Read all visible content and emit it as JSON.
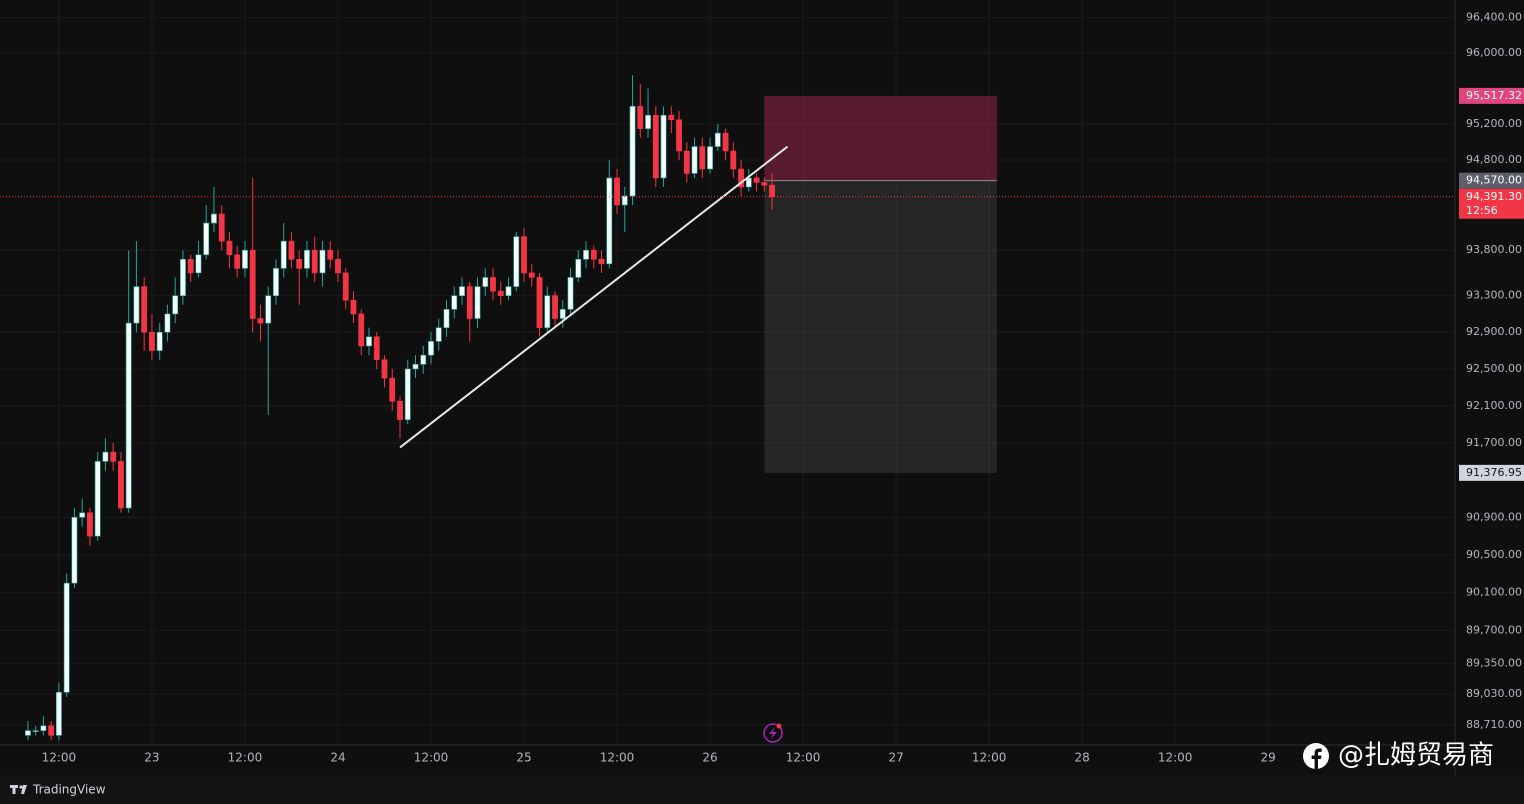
{
  "chart_data": {
    "type": "candlestick",
    "x": [
      8,
      9,
      10,
      11,
      12,
      13,
      14,
      15,
      16,
      17,
      18,
      19,
      20,
      21,
      22,
      23,
      24,
      25,
      26,
      27,
      28,
      29,
      30,
      31,
      32,
      33,
      34,
      35,
      36,
      37,
      38,
      39,
      40,
      41,
      42,
      43,
      44,
      45,
      46,
      47,
      48,
      49,
      50,
      51,
      52,
      53,
      54,
      55,
      56,
      57,
      58,
      59,
      60,
      61,
      62,
      63,
      64,
      65,
      66,
      67,
      68,
      69,
      70,
      71,
      72,
      73,
      74,
      75,
      76,
      77,
      78,
      79,
      80,
      81,
      82,
      83,
      84,
      85,
      86,
      87,
      88,
      89,
      90,
      91,
      92,
      93,
      94,
      95,
      96,
      97,
      98,
      99,
      100,
      101,
      102,
      103,
      104
    ],
    "open": [
      88600,
      88650,
      88650,
      88700,
      88600,
      89050,
      90200,
      90900,
      90950,
      90700,
      91500,
      91600,
      91500,
      91000,
      93000,
      93400,
      92900,
      92700,
      92900,
      93100,
      93300,
      93700,
      93550,
      93750,
      94100,
      94200,
      93900,
      93750,
      93600,
      93800,
      93050,
      93000,
      93300,
      93600,
      93900,
      93700,
      93600,
      93800,
      93550,
      93800,
      93700,
      93550,
      93250,
      93100,
      92750,
      92850,
      92600,
      92400,
      92150,
      91950,
      92500,
      92550,
      92650,
      92800,
      92950,
      93150,
      93300,
      93400,
      93050,
      93400,
      93500,
      93350,
      93300,
      93400,
      93950,
      93550,
      93500,
      92950,
      93300,
      93050,
      93150,
      93500,
      93700,
      93800,
      93700,
      93650,
      94600,
      94300,
      94400,
      95400,
      95150,
      95300,
      94600,
      95300,
      95250,
      94900,
      94650,
      94950,
      94700,
      94950,
      95100,
      94900,
      94700,
      94500,
      94600,
      94550,
      94520
    ],
    "high": [
      88750,
      88700,
      88800,
      88750,
      89150,
      90300,
      91000,
      91100,
      91000,
      91600,
      91750,
      91700,
      91600,
      93800,
      93900,
      93500,
      93100,
      93000,
      93200,
      93500,
      93800,
      93750,
      93900,
      94300,
      94500,
      94300,
      94000,
      93850,
      93900,
      94600,
      93200,
      93400,
      93700,
      94100,
      94000,
      93800,
      93900,
      93950,
      93900,
      93900,
      93800,
      93600,
      93350,
      93150,
      92950,
      92900,
      92650,
      92500,
      92200,
      92600,
      92650,
      92750,
      92900,
      93050,
      93250,
      93400,
      93500,
      93450,
      93500,
      93600,
      93600,
      93450,
      93500,
      94000,
      94050,
      93650,
      93550,
      93400,
      93350,
      93250,
      93600,
      93800,
      93900,
      93850,
      93800,
      94800,
      94700,
      94500,
      95750,
      95650,
      95600,
      95400,
      95400,
      95400,
      95350,
      95000,
      95050,
      95050,
      95050,
      95200,
      95150,
      95000,
      94800,
      94700,
      94650,
      94600,
      94650
    ],
    "low": [
      88550,
      88600,
      88600,
      88550,
      88550,
      89000,
      90150,
      90800,
      90600,
      90650,
      91400,
      91400,
      90950,
      90950,
      92900,
      92700,
      92600,
      92600,
      92800,
      93000,
      93200,
      93450,
      93500,
      93700,
      94000,
      93800,
      93600,
      93500,
      93500,
      92900,
      92800,
      92000,
      93200,
      93500,
      93600,
      93200,
      93500,
      93450,
      93400,
      93600,
      93450,
      93150,
      93000,
      92650,
      92650,
      92500,
      92300,
      92050,
      91750,
      91900,
      92400,
      92450,
      92550,
      92700,
      92850,
      93050,
      93200,
      92800,
      92950,
      93300,
      93250,
      93200,
      93250,
      93350,
      93450,
      93400,
      92850,
      92900,
      92950,
      92950,
      93100,
      93450,
      93600,
      93600,
      93550,
      93600,
      94200,
      94000,
      94300,
      95050,
      95050,
      94500,
      94500,
      95100,
      94800,
      94550,
      94600,
      94600,
      94650,
      94900,
      94800,
      94600,
      94400,
      94450,
      94450,
      94450,
      94250
    ],
    "close": [
      88650,
      88650,
      88700,
      88600,
      89050,
      90200,
      90900,
      90950,
      90700,
      91500,
      91600,
      91500,
      91000,
      93000,
      93400,
      92900,
      92700,
      92900,
      93100,
      93300,
      93700,
      93550,
      93750,
      94100,
      94200,
      93900,
      93750,
      93600,
      93800,
      93050,
      93000,
      93300,
      93600,
      93900,
      93700,
      93600,
      93800,
      93550,
      93800,
      93700,
      93550,
      93250,
      93100,
      92750,
      92850,
      92600,
      92400,
      92150,
      91950,
      92500,
      92550,
      92650,
      92800,
      92950,
      93150,
      93300,
      93400,
      93050,
      93400,
      93500,
      93350,
      93300,
      93400,
      93950,
      93550,
      93500,
      92950,
      93300,
      93050,
      93150,
      93500,
      93700,
      93800,
      93700,
      93650,
      94600,
      94300,
      94400,
      95400,
      95150,
      95300,
      94600,
      95300,
      95250,
      94900,
      94650,
      94950,
      94700,
      94950,
      95100,
      94900,
      94700,
      94500,
      94600,
      94550,
      94520,
      94391.3
    ],
    "up_color": "#f2fffc",
    "up_wick_color": "#26a69a",
    "down_color": "#f23645",
    "xlim": [
      4.4,
      192.1
    ],
    "xticks": [
      {
        "value": 12,
        "label": "12:00"
      },
      {
        "value": 24,
        "label": "23"
      },
      {
        "value": 36,
        "label": "12:00"
      },
      {
        "value": 48,
        "label": "24"
      },
      {
        "value": 60,
        "label": "12:00"
      },
      {
        "value": 72,
        "label": "25"
      },
      {
        "value": 84,
        "label": "12:00"
      },
      {
        "value": 96,
        "label": "26"
      },
      {
        "value": 108,
        "label": "12:00"
      },
      {
        "value": 120,
        "label": "27"
      },
      {
        "value": 132,
        "label": "12:00"
      },
      {
        "value": 144,
        "label": "28"
      },
      {
        "value": 156,
        "label": "12:00"
      },
      {
        "value": 168,
        "label": "29"
      }
    ],
    "ylim": [
      88500,
      96600
    ],
    "log_scale": true,
    "grid": true,
    "yticks": [
      {
        "value": 96400,
        "label": "96,400.00"
      },
      {
        "value": 96000,
        "label": "96,000.00"
      },
      {
        "value": 95200,
        "label": "95,200.00"
      },
      {
        "value": 94800,
        "label": "94,800.00"
      },
      {
        "value": 93800,
        "label": "93,800.00"
      },
      {
        "value": 93300,
        "label": "93,300.00"
      },
      {
        "value": 92900,
        "label": "92,900.00"
      },
      {
        "value": 92500,
        "label": "92,500.00"
      },
      {
        "value": 92100,
        "label": "92,100.00"
      },
      {
        "value": 91700,
        "label": "91,700.00"
      },
      {
        "value": 90900,
        "label": "90,900.00"
      },
      {
        "value": 90500,
        "label": "90,500.00"
      },
      {
        "value": 90100,
        "label": "90,100.00"
      },
      {
        "value": 89700,
        "label": "89,700.00"
      },
      {
        "value": 89350,
        "label": "89,350.00"
      },
      {
        "value": 89030,
        "label": "89,030.00"
      },
      {
        "value": 88710,
        "label": "88,710.00"
      }
    ],
    "trendline": {
      "x": [
        56,
        106
      ],
      "y": [
        91650,
        94950
      ],
      "color": "#e8e8e8"
    },
    "position": {
      "x_start": 103,
      "x_end": 133,
      "entry": 94570,
      "stop": 95517.32,
      "target": 91376.95,
      "stop_color": "rgba(190,45,90,0.42)",
      "target_color": "rgba(120,120,120,0.22)"
    },
    "price_labels": [
      {
        "value": 95517.32,
        "label": "95,517.32",
        "color": "#e0457b",
        "text_color": "#ffffff"
      },
      {
        "value": 94570,
        "label": "94,570.00",
        "color": "#5d606b",
        "text_color": "#ffffff"
      },
      {
        "value": 94391.3,
        "label": "94,391.30",
        "color": "#f23645",
        "text_color": "#ffffff"
      },
      {
        "value": 91376.95,
        "label": "91,376.95",
        "color": "#d1d4dc",
        "text_color": "#131722"
      }
    ],
    "countdown": "12:56"
  },
  "brand": "TradingView",
  "watermark": "@扎姆贸易商"
}
